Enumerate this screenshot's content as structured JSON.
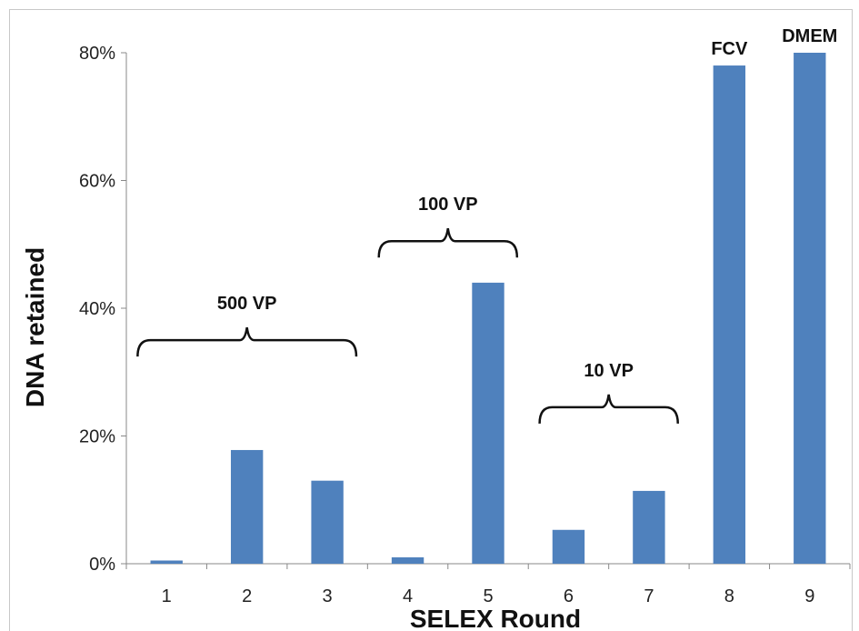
{
  "chart_data": {
    "type": "bar",
    "title": "",
    "xlabel": "SELEX Round",
    "ylabel": "DNA retained",
    "categories": [
      "1",
      "2",
      "3",
      "4",
      "5",
      "6",
      "7",
      "8",
      "9"
    ],
    "values": [
      0.5,
      17.8,
      13,
      1,
      44,
      5.3,
      11.4,
      78,
      80
    ],
    "ylim": [
      0,
      80
    ],
    "yticks": [
      "0%",
      "20%",
      "40%",
      "60%",
      "80%"
    ],
    "grid": false,
    "legend": "none",
    "bar_color": "#4f81bd",
    "bar_labels": [
      {
        "category": "8",
        "text": "FCV"
      },
      {
        "category": "9",
        "text": "DMEM"
      }
    ],
    "group_annotations": [
      {
        "text": "500 VP",
        "from": "1",
        "to": "3",
        "level": 35
      },
      {
        "text": "100 VP",
        "from": "4",
        "to": "5",
        "level": 50.5
      },
      {
        "text": "10 VP",
        "from": "6",
        "to": "7",
        "level": 24.5
      }
    ]
  }
}
